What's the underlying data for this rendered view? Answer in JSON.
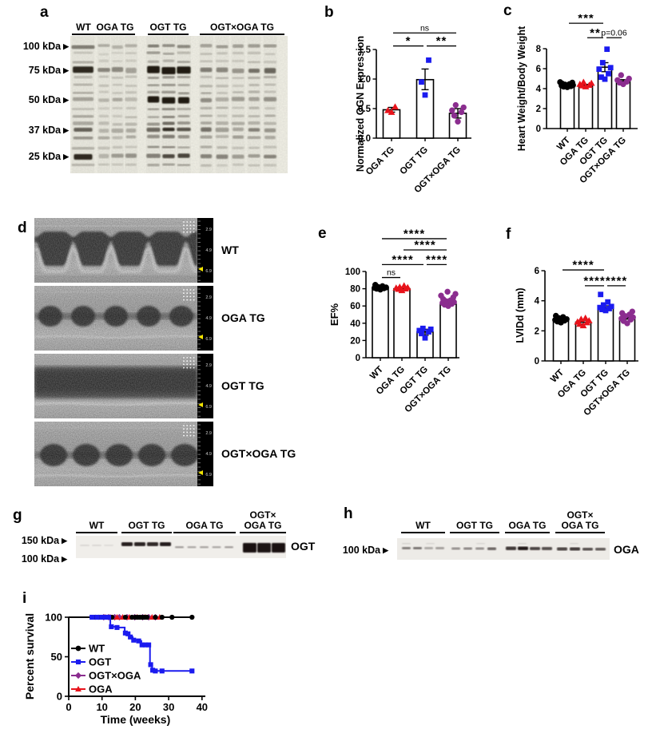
{
  "colors": {
    "black": "#000000",
    "red": "#e8131b",
    "blue": "#1b1bef",
    "purple": "#8b2d8f",
    "ruler_yellow": "#f2e400"
  },
  "panels": {
    "a": {
      "letter": "a",
      "lane_labels": [
        "WT",
        "OGA TG",
        "OGT TG",
        "OGT×OGA TG"
      ],
      "kda_markers": [
        "100 kDa",
        "75 kDa",
        "50 kDa",
        "37 kDa",
        "25 kDa"
      ]
    },
    "b": {
      "letter": "b"
    },
    "c": {
      "letter": "c"
    },
    "d": {
      "letter": "d",
      "rows": [
        {
          "label": "WT"
        },
        {
          "label": "OGA TG"
        },
        {
          "label": "OGT TG"
        },
        {
          "label": "OGT×OGA TG"
        }
      ],
      "ruler_values": [
        "2.9",
        "4.9",
        "6.9"
      ]
    },
    "e": {
      "letter": "e"
    },
    "f": {
      "letter": "f"
    },
    "g": {
      "letter": "g",
      "lane_labels": [
        "WT",
        "OGT TG",
        "OGA TG",
        "OGT×\nOGA TG"
      ],
      "kda_markers": [
        "150 kDa",
        "100 kDa"
      ],
      "protein": "OGT"
    },
    "h": {
      "letter": "h",
      "lane_labels": [
        "WT",
        "OGT TG",
        "OGA TG",
        "OGT×\nOGA TG"
      ],
      "kda_markers": [
        "100 kDa"
      ],
      "protein": "OGA"
    },
    "i": {
      "letter": "i"
    }
  },
  "chart_data": [
    {
      "id": "b",
      "type": "bar-scatter",
      "ylabel": "Normalized OGN Expression",
      "categories": [
        "OGA TG",
        "OGT TG",
        "OGT×OGA TG"
      ],
      "yticks": [
        0,
        0.5,
        1,
        1.5
      ],
      "ytick_labels": [
        "0.0",
        "0.5",
        "1.0",
        "1.5"
      ],
      "ylim": [
        0,
        1.5
      ],
      "means": [
        0.48,
        0.99,
        0.42
      ],
      "errors": [
        [
          0.44,
          0.52
        ],
        [
          0.82,
          1.17
        ],
        [
          0.34,
          0.5
        ]
      ],
      "points": [
        [
          0.44,
          0.47,
          0.53
        ],
        [
          0.73,
          0.95,
          1.32
        ],
        [
          0.28,
          0.38,
          0.44,
          0.47,
          0.52,
          0.56
        ]
      ],
      "markers": [
        "triangle",
        "square",
        "circle"
      ],
      "colors": [
        "#e8131b",
        "#1b1bef",
        "#8b2d8f"
      ],
      "sig": [
        {
          "a": 0,
          "b": 2,
          "y": 1.78,
          "label": "ns"
        },
        {
          "a": 0,
          "b": 1,
          "y": 1.56,
          "label": "*"
        },
        {
          "a": 1,
          "b": 2,
          "y": 1.56,
          "label": "**"
        }
      ]
    },
    {
      "id": "c",
      "type": "bar-scatter",
      "ylabel": "Heart Weight/Body Weight",
      "categories": [
        "WT",
        "OGA TG",
        "OGT TG",
        "OGT×OGA TG"
      ],
      "yticks": [
        0,
        2,
        4,
        6,
        8
      ],
      "ytick_labels": [
        "0",
        "2",
        "4",
        "6",
        "8"
      ],
      "ylim": [
        0,
        8
      ],
      "means": [
        4.35,
        4.35,
        6.15,
        4.75
      ],
      "errors": [
        [
          4.27,
          4.43
        ],
        [
          4.27,
          4.43
        ],
        [
          5.7,
          6.6
        ],
        [
          4.6,
          4.9
        ]
      ],
      "points": [
        [
          4.15,
          4.2,
          4.25,
          4.3,
          4.35,
          4.4,
          4.45,
          4.5,
          4.6,
          4.65
        ],
        [
          4.2,
          4.3,
          4.35,
          4.45,
          4.55,
          4.65
        ],
        [
          4.95,
          5.15,
          5.5,
          5.95,
          6.1,
          6.6,
          7.95
        ],
        [
          4.45,
          4.6,
          4.7,
          4.85,
          5.0,
          5.35
        ]
      ],
      "markers": [
        "circle",
        "triangle",
        "square",
        "circle"
      ],
      "colors": [
        "#000000",
        "#e8131b",
        "#1b1bef",
        "#8b2d8f"
      ],
      "sig": [
        {
          "a": 0,
          "b": 2,
          "y": 10.55,
          "label": "***"
        },
        {
          "a": 1,
          "b": 2,
          "y": 9.1,
          "label": "**"
        },
        {
          "a": 2,
          "b": 3,
          "y": 9.1,
          "label": "p=0.06"
        }
      ]
    },
    {
      "id": "e",
      "type": "bar-scatter",
      "ylabel": "EF%",
      "categories": [
        "WT",
        "OGA TG",
        "OGT TG",
        "OGT×OGA TG"
      ],
      "yticks": [
        0,
        20,
        40,
        60,
        80,
        100
      ],
      "ytick_labels": [
        "0",
        "20",
        "40",
        "60",
        "80",
        "100"
      ],
      "ylim": [
        0,
        100
      ],
      "means": [
        81,
        80,
        30,
        62
      ],
      "errors": [
        [
          79,
          83
        ],
        [
          78.5,
          82
        ],
        [
          26,
          33
        ],
        [
          60,
          65
        ]
      ],
      "points": [
        [
          79,
          80,
          80.5,
          81,
          81.5,
          82,
          83,
          84.5
        ],
        [
          78,
          79.5,
          80,
          81,
          81.5,
          82,
          83.5
        ],
        [
          23,
          28,
          30,
          31.5,
          33,
          34
        ],
        [
          60,
          61.5,
          62.5,
          63.5,
          64.5,
          65.5,
          66.5,
          68,
          70,
          72,
          74,
          76.5
        ]
      ],
      "markers": [
        "circle",
        "triangle",
        "square",
        "circle"
      ],
      "colors": [
        "#000000",
        "#e8131b",
        "#1b1bef",
        "#8b2d8f"
      ],
      "sig": [
        {
          "a": 0,
          "b": 3,
          "y": 138,
          "label": "****"
        },
        {
          "a": 1,
          "b": 3,
          "y": 125,
          "label": "****"
        },
        {
          "a": 0,
          "b": 2,
          "y": 108,
          "label": "****"
        },
        {
          "a": 2,
          "b": 3,
          "y": 108,
          "label": "****"
        },
        {
          "a": 0,
          "b": 1,
          "y": 93,
          "label": "ns"
        }
      ]
    },
    {
      "id": "f",
      "type": "bar-scatter",
      "ylabel": "LVIDd (mm)",
      "categories": [
        "WT",
        "OGA TG",
        "OGT TG",
        "OGT×OGA TG"
      ],
      "yticks": [
        0,
        2,
        4,
        6
      ],
      "ytick_labels": [
        "0",
        "2",
        "4",
        "6"
      ],
      "ylim": [
        0,
        6
      ],
      "means": [
        2.72,
        2.58,
        3.52,
        2.88
      ],
      "errors": [
        [
          2.62,
          2.82
        ],
        [
          2.45,
          2.7
        ],
        [
          3.38,
          3.66
        ],
        [
          2.78,
          3.0
        ]
      ],
      "points": [
        [
          2.55,
          2.62,
          2.68,
          2.72,
          2.78,
          2.85,
          2.92,
          3.0
        ],
        [
          2.35,
          2.45,
          2.55,
          2.6,
          2.68,
          2.78,
          2.85
        ],
        [
          3.35,
          3.42,
          3.48,
          3.55,
          3.62,
          3.72,
          3.92,
          4.42
        ],
        [
          2.5,
          2.65,
          2.75,
          2.82,
          2.9,
          2.98,
          3.08,
          3.18,
          3.28
        ]
      ],
      "markers": [
        "circle",
        "triangle",
        "square",
        "circle"
      ],
      "colors": [
        "#000000",
        "#e8131b",
        "#1b1bef",
        "#8b2d8f"
      ],
      "sig": [
        {
          "a": 0,
          "b": 2,
          "y": 6.05,
          "label": "****"
        },
        {
          "a": 1,
          "b": 2,
          "y": 5.0,
          "label": "****"
        },
        {
          "a": 2,
          "b": 3,
          "y": 5.0,
          "label": "****"
        }
      ]
    },
    {
      "id": "i",
      "type": "survival",
      "ylabel": "Percent survival",
      "xlabel": "Time (weeks)",
      "yticks": [
        0,
        50,
        100
      ],
      "xticks": [
        0,
        10,
        20,
        30,
        40
      ],
      "xlim": [
        0,
        40
      ],
      "ylim": [
        0,
        100
      ],
      "legend_position": "inside-left",
      "series": [
        {
          "name": "WT",
          "color": "#000000",
          "marker": "circle",
          "line": [
            [
              0,
              100
            ],
            [
              37.3,
              100
            ]
          ],
          "events": [
            [
              8,
              100
            ],
            [
              9,
              100
            ],
            [
              13,
              100
            ],
            [
              17,
              100
            ],
            [
              19,
              100
            ],
            [
              20,
              100
            ],
            [
              20.7,
              100
            ],
            [
              21.4,
              100
            ],
            [
              22.1,
              100
            ],
            [
              22.8,
              100
            ],
            [
              23.5,
              100
            ],
            [
              26,
              100
            ],
            [
              28,
              100
            ],
            [
              31,
              100
            ],
            [
              37,
              100
            ]
          ]
        },
        {
          "name": "OGT",
          "color": "#1b1bef",
          "marker": "square",
          "line": [
            [
              0,
              100
            ],
            [
              12.5,
              100
            ],
            [
              12.5,
              88
            ],
            [
              14,
              88
            ],
            [
              14,
              87
            ],
            [
              16.8,
              87
            ],
            [
              16.8,
              80
            ],
            [
              17.6,
              80
            ],
            [
              17.6,
              79
            ],
            [
              18.2,
              79
            ],
            [
              18.2,
              75
            ],
            [
              19.2,
              75
            ],
            [
              19.2,
              71
            ],
            [
              20.6,
              71
            ],
            [
              20.6,
              70
            ],
            [
              21.8,
              70
            ],
            [
              21.8,
              65
            ],
            [
              24.4,
              65
            ],
            [
              24.4,
              40
            ],
            [
              25,
              40
            ],
            [
              25,
              33
            ],
            [
              25.8,
              33
            ],
            [
              25.8,
              32
            ],
            [
              37,
              32
            ]
          ],
          "events": [
            [
              7,
              100
            ],
            [
              8.5,
              100
            ],
            [
              10,
              100
            ],
            [
              11,
              100
            ],
            [
              12,
              100
            ],
            [
              12.8,
              88
            ],
            [
              14.5,
              87
            ],
            [
              17,
              80
            ],
            [
              17.8,
              79
            ],
            [
              18.5,
              75
            ],
            [
              19.5,
              71
            ],
            [
              21,
              70
            ],
            [
              22,
              65
            ],
            [
              23,
              65
            ],
            [
              24,
              65
            ],
            [
              24.6,
              40
            ],
            [
              25.2,
              33
            ],
            [
              26,
              32
            ],
            [
              28,
              32
            ],
            [
              37,
              32
            ]
          ]
        },
        {
          "name": "OGT×OGA",
          "color": "#8b2d8f",
          "marker": "diamond",
          "line": [
            [
              0,
              100
            ],
            [
              26.5,
              100
            ]
          ],
          "events": [
            [
              10.5,
              100
            ],
            [
              12,
              100
            ],
            [
              13.8,
              100
            ],
            [
              15.2,
              100
            ],
            [
              17.5,
              100
            ],
            [
              19.8,
              100
            ],
            [
              22.2,
              100
            ],
            [
              24,
              100
            ],
            [
              26,
              100
            ]
          ]
        },
        {
          "name": "OGA",
          "color": "#e8131b",
          "marker": "triangle",
          "line": [
            [
              0,
              100
            ],
            [
              27.5,
              100
            ]
          ],
          "events": [
            [
              11,
              100
            ],
            [
              12.5,
              100
            ],
            [
              14.5,
              100
            ],
            [
              16.2,
              100
            ],
            [
              18.2,
              100
            ],
            [
              20.5,
              100
            ],
            [
              23,
              100
            ],
            [
              25,
              100
            ],
            [
              27.3,
              100
            ]
          ]
        }
      ]
    }
  ]
}
